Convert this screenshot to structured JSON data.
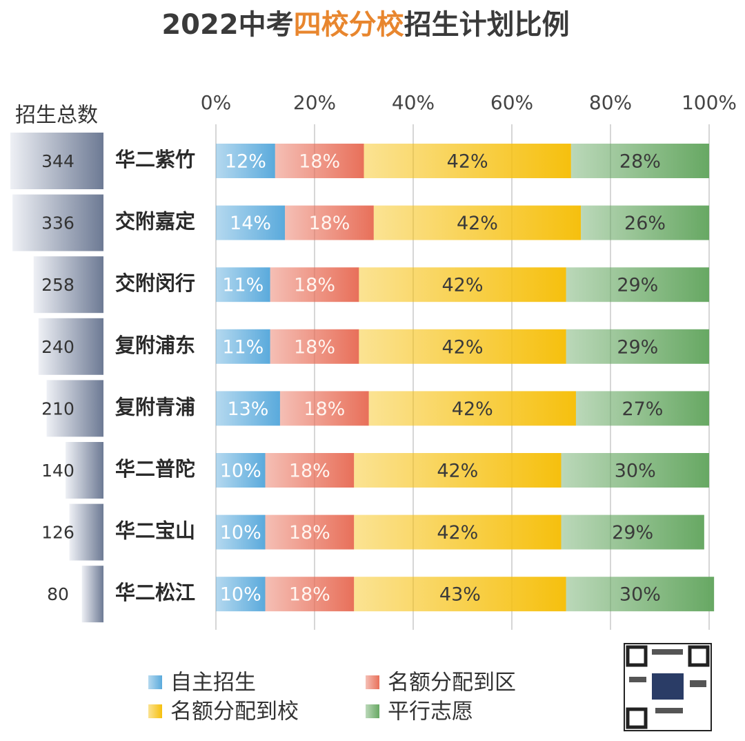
{
  "chart_data": {
    "type": "stacked-hbar",
    "title": [
      "2022中考",
      "四校分校",
      "招生计划比例"
    ],
    "categories": [
      "华二紫竹",
      "交附嘉定",
      "交附闵行",
      "复附浦东",
      "复附青浦",
      "华二普陀",
      "华二宝山",
      "华二松江"
    ],
    "totals": {
      "name": "招生总数",
      "values": [
        344,
        336,
        258,
        240,
        210,
        140,
        126,
        80
      ]
    },
    "series": [
      {
        "name": "自主招生",
        "color": "#5aaadc",
        "values": [
          12,
          14,
          11,
          11,
          13,
          10,
          10,
          10
        ],
        "value_labels": [
          "12%",
          "14%",
          "11%",
          "11%",
          "13%",
          "10%",
          "10%",
          "10%"
        ]
      },
      {
        "name": "名额分配到区",
        "color": "#e8705a",
        "values": [
          18,
          18,
          18,
          18,
          18,
          18,
          18,
          18
        ],
        "value_labels": [
          "18%",
          "18%",
          "18%",
          "18%",
          "18%",
          "18%",
          "18%",
          "18%"
        ]
      },
      {
        "name": "名额分配到校",
        "color": "#f6c00e",
        "values": [
          42,
          42,
          42,
          42,
          42,
          42,
          42,
          43
        ],
        "value_labels": [
          "42%",
          "42%",
          "42%",
          "42%",
          "42%",
          "42%",
          "42%",
          "43%"
        ]
      },
      {
        "name": "平行志愿",
        "color": "#67a863",
        "values": [
          28,
          26,
          29,
          29,
          27,
          30,
          29,
          30
        ],
        "value_labels": [
          "28%",
          "26%",
          "29%",
          "29%",
          "27%",
          "30%",
          "29%",
          "30%"
        ]
      }
    ],
    "xlim": [
      0,
      100
    ],
    "xticks": [
      {
        "value": 0,
        "label": "0%"
      },
      {
        "value": 20,
        "label": "20%"
      },
      {
        "value": 40,
        "label": "40%"
      },
      {
        "value": 60,
        "label": "60%"
      },
      {
        "value": 80,
        "label": "80%"
      },
      {
        "value": 100,
        "label": "100%"
      }
    ],
    "grid": true
  }
}
